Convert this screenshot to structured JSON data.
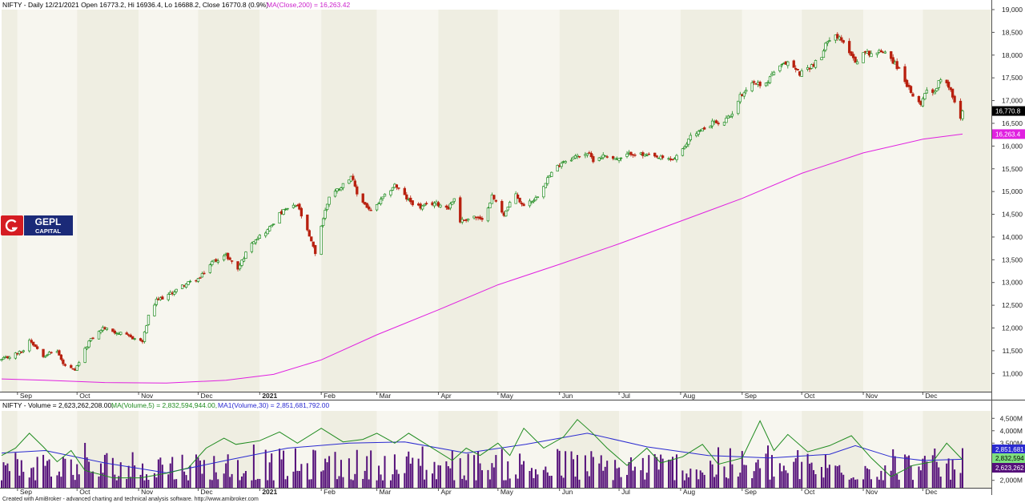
{
  "header": {
    "price_title": "NIFTY - Daily 12/21/2021 Open 16773.2, Hi 16936.4, Lo 16688.2, Close 16770.8 (0.9%)",
    "ma_label": "MA(Close,200) = 16,263.42",
    "volume_title": "NIFTY - Volume = 2,623,262,208.00,",
    "vol_ma5_label": "MA(Volume,5) = 2,832,594,944.00,",
    "vol_ma30_label": "MA1(Volume,30) = 2,851,681,792.00"
  },
  "footer": "Created with AmiBroker - advanced charting and technical analysis software. http://www.amibroker.com",
  "logo": {
    "line1": "GEPL",
    "line2": "CAPITAL"
  },
  "colors": {
    "up": "#1f8b1f",
    "down": "#b8200f",
    "ma": "#e020e0",
    "vol_bar": "#55107a",
    "vol_ma5": "#1f8b1f",
    "vol_ma30": "#2a2ad0",
    "band_a": "#f7f6ef",
    "band_b": "#efeee2",
    "logo_red": "#d51c22",
    "logo_navy": "#1b2a78"
  },
  "chart_data": [
    {
      "type": "candlestick",
      "title": "NIFTY - Daily",
      "x_range": [
        "2020-08-24",
        "2021-12-21"
      ],
      "ylim": [
        10600,
        19000
      ],
      "ytick_labels": [
        "11,000",
        "11,500",
        "12,000",
        "12,500",
        "13,000",
        "13,500",
        "14,000",
        "14,500",
        "15,000",
        "15,500",
        "16,000",
        "16,500",
        "17,000",
        "17,500",
        "18,000",
        "18,500",
        "19,000"
      ],
      "month_labels": [
        "Sep",
        "Oct",
        "Nov",
        "Dec",
        "2021",
        "Feb",
        "Mar",
        "Apr",
        "May",
        "Jun",
        "Jul",
        "Aug",
        "Sep",
        "Oct",
        "Nov",
        "Dec"
      ],
      "month_start_dates": [
        "2020-09-01",
        "2020-10-01",
        "2020-11-01",
        "2020-12-01",
        "2021-01-01",
        "2021-02-01",
        "2021-03-01",
        "2021-04-01",
        "2021-05-01",
        "2021-06-01",
        "2021-07-01",
        "2021-08-01",
        "2021-09-01",
        "2021-10-01",
        "2021-11-01",
        "2021-12-01"
      ],
      "close_path": [
        [
          "2020-08-24",
          11300
        ],
        [
          "2020-09-04",
          11500
        ],
        [
          "2020-09-07",
          11750
        ],
        [
          "2020-09-14",
          11400
        ],
        [
          "2020-09-21",
          11500
        ],
        [
          "2020-09-24",
          11200
        ],
        [
          "2020-09-30",
          11050
        ],
        [
          "2020-10-02",
          11250
        ],
        [
          "2020-10-07",
          11700
        ],
        [
          "2020-10-14",
          12000
        ],
        [
          "2020-10-21",
          11900
        ],
        [
          "2020-10-28",
          11800
        ],
        [
          "2020-11-03",
          11700
        ],
        [
          "2020-11-06",
          12250
        ],
        [
          "2020-11-10",
          12600
        ],
        [
          "2020-11-17",
          12750
        ],
        [
          "2020-11-24",
          12950
        ],
        [
          "2020-12-02",
          13100
        ],
        [
          "2020-12-08",
          13450
        ],
        [
          "2020-12-15",
          13600
        ],
        [
          "2020-12-21",
          13300
        ],
        [
          "2020-12-28",
          13900
        ],
        [
          "2021-01-05",
          14150
        ],
        [
          "2021-01-11",
          14500
        ],
        [
          "2021-01-14",
          14600
        ],
        [
          "2021-01-20",
          14700
        ],
        [
          "2021-01-29",
          13650
        ],
        [
          "2021-02-01",
          14250
        ],
        [
          "2021-02-05",
          14900
        ],
        [
          "2021-02-12",
          15150
        ],
        [
          "2021-02-16",
          15350
        ],
        [
          "2021-02-19",
          14950
        ],
        [
          "2021-02-26",
          14550
        ],
        [
          "2021-03-05",
          14900
        ],
        [
          "2021-03-10",
          15150
        ],
        [
          "2021-03-17",
          14800
        ],
        [
          "2021-03-23",
          14650
        ],
        [
          "2021-03-30",
          14750
        ],
        [
          "2021-04-06",
          14650
        ],
        [
          "2021-04-09",
          14850
        ],
        [
          "2021-04-12",
          14350
        ],
        [
          "2021-04-19",
          14450
        ],
        [
          "2021-04-23",
          14350
        ],
        [
          "2021-04-28",
          14900
        ],
        [
          "2021-05-04",
          14500
        ],
        [
          "2021-05-10",
          14950
        ],
        [
          "2021-05-13",
          14700
        ],
        [
          "2021-05-20",
          14850
        ],
        [
          "2021-05-26",
          15300
        ],
        [
          "2021-06-02",
          15650
        ],
        [
          "2021-06-08",
          15750
        ],
        [
          "2021-06-15",
          15850
        ],
        [
          "2021-06-18",
          15700
        ],
        [
          "2021-06-24",
          15800
        ],
        [
          "2021-07-01",
          15700
        ],
        [
          "2021-07-07",
          15850
        ],
        [
          "2021-07-13",
          15800
        ],
        [
          "2021-07-19",
          15750
        ],
        [
          "2021-07-28",
          15700
        ],
        [
          "2021-08-03",
          15950
        ],
        [
          "2021-08-06",
          16250
        ],
        [
          "2021-08-12",
          16350
        ],
        [
          "2021-08-18",
          16550
        ],
        [
          "2021-08-20",
          16450
        ],
        [
          "2021-08-26",
          16650
        ],
        [
          "2021-08-31",
          17100
        ],
        [
          "2021-09-06",
          17400
        ],
        [
          "2021-09-13",
          17350
        ],
        [
          "2021-09-16",
          17600
        ],
        [
          "2021-09-24",
          17850
        ],
        [
          "2021-09-30",
          17600
        ],
        [
          "2021-10-07",
          17800
        ],
        [
          "2021-10-11",
          17950
        ],
        [
          "2021-10-14",
          18350
        ],
        [
          "2021-10-18",
          18450
        ],
        [
          "2021-10-25",
          18100
        ],
        [
          "2021-10-28",
          17850
        ],
        [
          "2021-11-01",
          18050
        ],
        [
          "2021-11-08",
          18050
        ],
        [
          "2021-11-12",
          18100
        ],
        [
          "2021-11-18",
          17750
        ],
        [
          "2021-11-22",
          17450
        ],
        [
          "2021-11-26",
          17050
        ],
        [
          "2021-11-30",
          16950
        ],
        [
          "2021-12-03",
          17250
        ],
        [
          "2021-12-07",
          17200
        ],
        [
          "2021-12-10",
          17500
        ],
        [
          "2021-12-13",
          17400
        ],
        [
          "2021-12-15",
          17250
        ],
        [
          "2021-12-17",
          16950
        ],
        [
          "2021-12-20",
          16600
        ],
        [
          "2021-12-21",
          16770
        ]
      ],
      "ma200_path": [
        [
          "2020-08-24",
          10880
        ],
        [
          "2020-09-15",
          10850
        ],
        [
          "2020-10-15",
          10800
        ],
        [
          "2020-11-15",
          10790
        ],
        [
          "2020-12-15",
          10850
        ],
        [
          "2021-01-08",
          10980
        ],
        [
          "2021-02-01",
          11300
        ],
        [
          "2021-03-01",
          11850
        ],
        [
          "2021-04-01",
          12400
        ],
        [
          "2021-05-01",
          12950
        ],
        [
          "2021-06-01",
          13400
        ],
        [
          "2021-07-01",
          13850
        ],
        [
          "2021-08-01",
          14350
        ],
        [
          "2021-09-01",
          14850
        ],
        [
          "2021-10-01",
          15400
        ],
        [
          "2021-11-01",
          15850
        ],
        [
          "2021-12-01",
          16150
        ],
        [
          "2021-12-21",
          16263
        ]
      ],
      "last_close": 16770.8,
      "last_close_label": "16,770.8",
      "ma_last_label": "16,263.4"
    },
    {
      "type": "bar",
      "title": "NIFTY - Volume",
      "ylim": [
        1700000000,
        4800000000
      ],
      "ytick_labels": [
        "2,000M",
        "2,500M",
        "3,000M",
        "3,500M",
        "4,000M",
        "4,500M"
      ],
      "month_labels": [
        "Sep",
        "Oct",
        "Nov",
        "Dec",
        "2021",
        "Feb",
        "Mar",
        "Apr",
        "May",
        "Jun",
        "Jul",
        "Aug",
        "Sep",
        "Oct",
        "Nov",
        "Dec"
      ],
      "series": [
        {
          "name": "MA(Volume,5)",
          "path": [
            [
              "2020-08-24",
              3000000000
            ],
            [
              "2020-08-31",
              3300000000
            ],
            [
              "2020-09-07",
              3900000000
            ],
            [
              "2020-09-14",
              3350000000
            ],
            [
              "2020-09-21",
              2750000000
            ],
            [
              "2020-09-28",
              3200000000
            ],
            [
              "2020-10-05",
              2400000000
            ],
            [
              "2020-10-19",
              2100000000
            ],
            [
              "2020-11-02",
              2100000000
            ],
            [
              "2020-11-16",
              2300000000
            ],
            [
              "2020-11-26",
              2500000000
            ],
            [
              "2020-12-05",
              3300000000
            ],
            [
              "2020-12-14",
              3700000000
            ],
            [
              "2020-12-20",
              3450000000
            ],
            [
              "2021-01-01",
              3600000000
            ],
            [
              "2021-01-11",
              3950000000
            ],
            [
              "2021-01-20",
              3500000000
            ],
            [
              "2021-02-01",
              4100000000
            ],
            [
              "2021-02-12",
              3550000000
            ],
            [
              "2021-02-22",
              3650000000
            ],
            [
              "2021-03-01",
              3900000000
            ],
            [
              "2021-03-10",
              3500000000
            ],
            [
              "2021-03-17",
              3900000000
            ],
            [
              "2021-03-25",
              3500000000
            ],
            [
              "2021-04-08",
              2800000000
            ],
            [
              "2021-04-15",
              3300000000
            ],
            [
              "2021-04-22",
              3000000000
            ],
            [
              "2021-05-01",
              3500000000
            ],
            [
              "2021-05-07",
              3000000000
            ],
            [
              "2021-05-14",
              4100000000
            ],
            [
              "2021-05-24",
              3300000000
            ],
            [
              "2021-06-03",
              3750000000
            ],
            [
              "2021-06-10",
              4450000000
            ],
            [
              "2021-06-17",
              3950000000
            ],
            [
              "2021-06-25",
              3300000000
            ],
            [
              "2021-07-05",
              2600000000
            ],
            [
              "2021-07-15",
              3300000000
            ],
            [
              "2021-07-22",
              2700000000
            ],
            [
              "2021-08-02",
              2950000000
            ],
            [
              "2021-08-12",
              3450000000
            ],
            [
              "2021-08-20",
              2650000000
            ],
            [
              "2021-09-01",
              2900000000
            ],
            [
              "2021-09-10",
              4400000000
            ],
            [
              "2021-09-17",
              3200000000
            ],
            [
              "2021-09-24",
              3850000000
            ],
            [
              "2021-10-04",
              3150000000
            ],
            [
              "2021-10-15",
              3400000000
            ],
            [
              "2021-10-26",
              3800000000
            ],
            [
              "2021-11-05",
              2900000000
            ],
            [
              "2021-11-15",
              2150000000
            ],
            [
              "2021-11-26",
              2600000000
            ],
            [
              "2021-12-06",
              2750000000
            ],
            [
              "2021-12-13",
              3500000000
            ],
            [
              "2021-12-21",
              2830000000
            ]
          ]
        },
        {
          "name": "MA1(Volume,30)",
          "path": [
            [
              "2020-08-24",
              3100000000
            ],
            [
              "2020-09-15",
              3200000000
            ],
            [
              "2020-10-15",
              2700000000
            ],
            [
              "2020-11-15",
              2300000000
            ],
            [
              "2020-12-15",
              2800000000
            ],
            [
              "2021-01-15",
              3300000000
            ],
            [
              "2021-02-15",
              3500000000
            ],
            [
              "2021-03-15",
              3550000000
            ],
            [
              "2021-04-15",
              3100000000
            ],
            [
              "2021-05-15",
              3450000000
            ],
            [
              "2021-06-15",
              3900000000
            ],
            [
              "2021-07-15",
              3350000000
            ],
            [
              "2021-08-15",
              3000000000
            ],
            [
              "2021-09-15",
              2900000000
            ],
            [
              "2021-10-15",
              3050000000
            ],
            [
              "2021-10-28",
              3400000000
            ],
            [
              "2021-11-15",
              2950000000
            ],
            [
              "2021-12-01",
              2800000000
            ],
            [
              "2021-12-21",
              2850000000
            ]
          ]
        }
      ],
      "bar_range": [
        2000000000,
        3300000000
      ],
      "last_ma30_label": "2,851,681",
      "last_ma5_label": "2,832,594",
      "last_vol_label": "2,623,262"
    }
  ]
}
